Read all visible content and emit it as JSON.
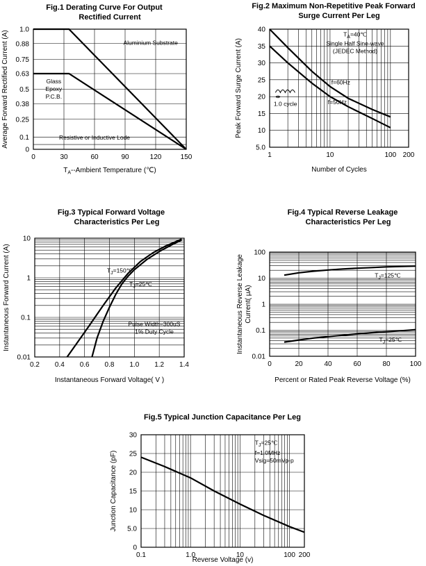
{
  "chart_data": [
    {
      "id": "fig1",
      "type": "line",
      "title_lines": [
        "Fig.1 Derating Curve For Output",
        "Rectified Current"
      ],
      "xlabel_pre": "T",
      "xlabel_sub": "A",
      "xlabel_post": "--Ambient Temperature (℃)",
      "ylabel": "Average Forward Rectified Current (A)",
      "xscale": "linear",
      "xlim": [
        0,
        150
      ],
      "ylim": [
        0,
        1.0
      ],
      "xticks": [
        0,
        30,
        60,
        90,
        120,
        150
      ],
      "xticklabels": [
        "0",
        "30",
        "60",
        "90",
        "120",
        "150"
      ],
      "yticks": [
        0,
        0.1,
        0.25,
        0.38,
        0.5,
        0.63,
        0.75,
        0.88,
        1.0
      ],
      "yticklabels": [
        "0",
        "0.1",
        "0.25",
        "0.38",
        "0.5",
        "0.63",
        "0.75",
        "0.88",
        "1.0"
      ],
      "series": [
        {
          "name": "Aluminium Substrate",
          "x": [
            0,
            35,
            150
          ],
          "y": [
            1.0,
            1.0,
            0
          ]
        },
        {
          "name": "Glass Epoxy P.C.B.",
          "x": [
            0,
            35,
            150
          ],
          "y": [
            0.63,
            0.63,
            0
          ]
        }
      ],
      "annotations": [
        {
          "lines": [
            "Aluminium Substrate"
          ],
          "at": [
            115,
            0.87
          ]
        },
        {
          "lines": [
            "Glass",
            "Epoxy",
            "P.C.B."
          ],
          "at": [
            20,
            0.55
          ]
        },
        {
          "lines": [
            "Resistive or Inductive Lode"
          ],
          "at": [
            60,
            0.08
          ]
        }
      ]
    },
    {
      "id": "fig2",
      "type": "line",
      "title_lines": [
        "Fig.2 Maximum Non-Repetitive Peak Forward",
        "Surge Current Per Leg"
      ],
      "xlabel": "Number of Cycles",
      "ylabel": "Peak Forward Surge Current (A)",
      "xscale": "log",
      "xlim": [
        1,
        200
      ],
      "ylim": [
        5,
        40
      ],
      "xticks": [
        1,
        10,
        100,
        200
      ],
      "xticklabels": [
        "1",
        "10",
        "100",
        "200"
      ],
      "yticks": [
        5,
        10,
        15,
        20,
        25,
        30,
        35,
        40
      ],
      "yticklabels": [
        "5.0",
        "10",
        "15",
        "20",
        "25",
        "30",
        "35",
        "40"
      ],
      "series": [
        {
          "name": "f=60Hz",
          "x": [
            1,
            2,
            5,
            10,
            20,
            50,
            100
          ],
          "y": [
            40,
            34.5,
            27.5,
            23,
            19.5,
            16.2,
            14
          ]
        },
        {
          "name": "f=50Hz",
          "x": [
            1,
            2,
            5,
            10,
            20,
            50,
            100
          ],
          "y": [
            35,
            30,
            24,
            20,
            17,
            13.5,
            10.8
          ]
        }
      ],
      "annotations": [
        {
          "lines": [
            "Single Half Sine-wave",
            "(JEDEC Method)"
          ],
          "at": [
            26,
            35.2
          ]
        },
        {
          "lines": [
            "f=60Hz"
          ],
          "at": [
            10.5,
            23.6
          ]
        },
        {
          "lines": [
            "f=50Hz"
          ],
          "at": [
            9.2,
            17.8
          ]
        },
        {
          "lines": [
            "1.0 cycle"
          ],
          "at": [
            1.17,
            17.2
          ]
        }
      ],
      "ta_label": {
        "pre": "T",
        "sub": "A",
        "post": "=40℃"
      }
    },
    {
      "id": "fig3",
      "type": "line",
      "title_lines": [
        "Fig.3 Typical Forward Voltage",
        "Characteristics Per Leg"
      ],
      "xlabel": "Instantaneous Forward Voltage( V )",
      "ylabel": "Instantaneous Forward Current (A)",
      "xscale": "linear",
      "yscale": "log",
      "xlim": [
        0.2,
        1.4
      ],
      "ylim": [
        0.01,
        10
      ],
      "xticks": [
        0.2,
        0.4,
        0.6,
        0.8,
        1.0,
        1.2,
        1.4
      ],
      "xticklabels": [
        "0.2",
        "0.4",
        "0.6",
        "0.8",
        "1.0",
        "1.2",
        "1.4"
      ],
      "yticks": [
        0.01,
        0.1,
        1,
        10
      ],
      "yticklabels": [
        "0.01",
        "0.1",
        "1",
        "10"
      ],
      "series": [
        {
          "name": "TJ=150℃",
          "x": [
            0.46,
            0.55,
            0.65,
            0.75,
            0.85,
            0.95,
            1.05,
            1.15,
            1.25,
            1.38
          ],
          "y": [
            0.01,
            0.025,
            0.07,
            0.2,
            0.55,
            1.3,
            2.6,
            4.3,
            6.3,
            9.5
          ]
        },
        {
          "name": "TJ=25℃",
          "x": [
            0.66,
            0.7,
            0.75,
            0.8,
            0.85,
            0.9,
            0.95,
            1.0,
            1.1,
            1.2,
            1.3,
            1.38
          ],
          "y": [
            0.01,
            0.03,
            0.08,
            0.18,
            0.38,
            0.7,
            1.1,
            1.6,
            2.9,
            4.6,
            6.8,
            9.0
          ]
        }
      ],
      "annotations": [
        {
          "lines": [
            "Pulse Width=300uS",
            "1% Duty Cycle"
          ],
          "at": [
            1.16,
            0.06
          ]
        }
      ],
      "curve_labels": [
        {
          "pre": "T",
          "sub": "J",
          "post": "=150℃",
          "at": [
            0.78,
            1.35
          ]
        },
        {
          "pre": "T",
          "sub": "J",
          "post": "=25℃",
          "at": [
            0.96,
            0.62
          ]
        }
      ]
    },
    {
      "id": "fig4",
      "type": "line",
      "title_lines": [
        "Fig.4 Typical Reverse Leakage",
        "Characteristics Per Leg"
      ],
      "xlabel": "Percent or Rated Peak Reverse Voltage (%)",
      "ylabel_lines": [
        "Instantaneous Reverse Leakage",
        "Current( μA)"
      ],
      "xscale": "linear",
      "yscale": "log",
      "xlim": [
        0,
        100
      ],
      "ylim": [
        0.01,
        100
      ],
      "xticks": [
        0,
        20,
        40,
        60,
        80,
        100
      ],
      "xticklabels": [
        "0",
        "20",
        "40",
        "60",
        "80",
        "100"
      ],
      "yticks": [
        0.01,
        0.1,
        1,
        10,
        100
      ],
      "yticklabels": [
        "0.01",
        "0.1",
        "1",
        "10",
        "100"
      ],
      "series": [
        {
          "name": "TJ=125℃",
          "x": [
            10,
            20,
            30,
            40,
            50,
            60,
            70,
            80,
            90,
            100
          ],
          "y": [
            13,
            16,
            18.5,
            20.5,
            22.5,
            24,
            25.5,
            27,
            28,
            29
          ]
        },
        {
          "name": "TJ=25℃",
          "x": [
            10,
            20,
            30,
            40,
            50,
            60,
            70,
            80,
            90,
            100
          ],
          "y": [
            0.035,
            0.042,
            0.05,
            0.057,
            0.064,
            0.072,
            0.08,
            0.088,
            0.095,
            0.105
          ]
        }
      ],
      "curve_labels": [
        {
          "pre": "T",
          "sub": "J",
          "post": "=125℃",
          "at": [
            72,
            10.5
          ]
        },
        {
          "pre": "T",
          "sub": "J",
          "post": "=25℃",
          "at": [
            75,
            0.036
          ]
        }
      ]
    },
    {
      "id": "fig5",
      "type": "line",
      "title_lines": [
        "Fig.5 Typical Junction Capacitance Per Leg"
      ],
      "xlabel": "Reverse Voltage (v)",
      "ylabel": "Junction Capacitance (pF)",
      "xscale": "log",
      "xlim": [
        0.1,
        200
      ],
      "ylim": [
        0,
        30
      ],
      "xticks": [
        0.1,
        1,
        10,
        100,
        200
      ],
      "xticklabels": [
        "0.1",
        "1.0",
        "10",
        "100",
        "200"
      ],
      "yticks": [
        0,
        5,
        10,
        15,
        20,
        25,
        30
      ],
      "yticklabels": [
        "0",
        "5.0",
        "10",
        "15",
        "20",
        "25",
        "30"
      ],
      "series": [
        {
          "name": "Capacitance",
          "x": [
            0.1,
            0.3,
            1,
            3,
            10,
            30,
            100,
            200
          ],
          "y": [
            24,
            21.5,
            18.5,
            15,
            11.5,
            8.5,
            5.5,
            4
          ]
        }
      ],
      "annotations": [
        {
          "lines": [
            "f=1.0MHz",
            "Vsig=50mVp-p"
          ],
          "at": [
            20,
            24.6
          ]
        }
      ],
      "tj_label": {
        "pre": "T",
        "sub": "J",
        "post": "=25℃",
        "at": [
          20,
          27.3
        ]
      }
    }
  ]
}
